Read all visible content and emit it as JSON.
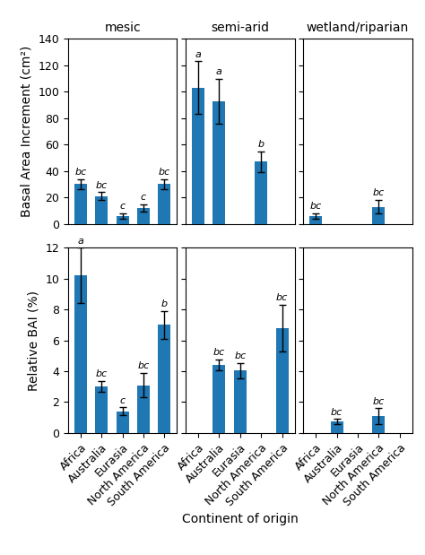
{
  "chart_data": [
    {
      "type": "bar",
      "title": "mesic",
      "categories": [
        "Africa",
        "Australia",
        "Eurasia",
        "North America",
        "South America"
      ],
      "values": [
        30,
        21,
        6,
        12,
        30
      ],
      "errors": [
        4,
        3,
        2,
        3,
        4
      ],
      "annotations": [
        "bc",
        "bc",
        "c",
        "c",
        "bc"
      ],
      "ylabel": "Basal Area Increment (cm²)",
      "ylim": [
        0,
        140
      ],
      "yticks": [
        0,
        20,
        40,
        60,
        80,
        100,
        120,
        140
      ],
      "tick_labels": "y"
    },
    {
      "type": "bar",
      "title": "semi-arid",
      "categories": [
        "Africa",
        "Australia",
        "Eurasia",
        "North America",
        "South America"
      ],
      "values": [
        103,
        93,
        null,
        47,
        null
      ],
      "errors": [
        20,
        17,
        null,
        8,
        null
      ],
      "annotations": [
        "a",
        "a",
        null,
        "b",
        null
      ],
      "ylim": [
        0,
        140
      ],
      "yticks": [
        0,
        20,
        40,
        60,
        80,
        100,
        120,
        140
      ],
      "tick_labels": false
    },
    {
      "type": "bar",
      "title": "wetland/riparian",
      "categories": [
        "Africa",
        "Australia",
        "Eurasia",
        "North America",
        "South America"
      ],
      "values": [
        6,
        null,
        null,
        13,
        null
      ],
      "errors": [
        2,
        null,
        null,
        5,
        null
      ],
      "annotations": [
        "bc",
        null,
        null,
        "bc",
        null
      ],
      "ylim": [
        0,
        140
      ],
      "yticks": [
        0,
        20,
        40,
        60,
        80,
        100,
        120,
        140
      ],
      "tick_labels": false
    },
    {
      "type": "bar",
      "categories": [
        "Africa",
        "Australia",
        "Eurasia",
        "North America",
        "South America"
      ],
      "values": [
        10.2,
        3.0,
        1.4,
        3.1,
        7.0
      ],
      "errors": [
        1.8,
        0.35,
        0.25,
        0.8,
        0.9
      ],
      "annotations": [
        "a",
        "bc",
        "c",
        "bc",
        "b"
      ],
      "ylabel": "Relative BAI (%)",
      "ylim": [
        0,
        12
      ],
      "yticks": [
        0,
        2,
        4,
        6,
        8,
        10,
        12
      ]
    },
    {
      "type": "bar",
      "categories": [
        "Africa",
        "Australia",
        "Eurasia",
        "North America",
        "South America"
      ],
      "values": [
        null,
        4.4,
        4.05,
        null,
        6.8
      ],
      "errors": [
        null,
        0.35,
        0.5,
        null,
        1.5
      ],
      "annotations": [
        null,
        "bc",
        "bc",
        null,
        "bc"
      ],
      "xlabel": "Continent of origin",
      "ylim": [
        0,
        12
      ],
      "yticks": [
        0,
        2,
        4,
        6,
        8,
        10,
        12
      ],
      "tick_labels": "x"
    },
    {
      "type": "bar",
      "categories": [
        "Africa",
        "Australia",
        "Eurasia",
        "North America",
        "South America"
      ],
      "values": [
        null,
        0.75,
        null,
        1.1,
        null
      ],
      "errors": [
        null,
        0.15,
        null,
        0.5,
        null
      ],
      "annotations": [
        null,
        "bc",
        null,
        "bc",
        null
      ],
      "ylim": [
        0,
        12
      ],
      "yticks": [
        0,
        2,
        4,
        6,
        8,
        10,
        12
      ],
      "tick_labels": "x"
    }
  ]
}
